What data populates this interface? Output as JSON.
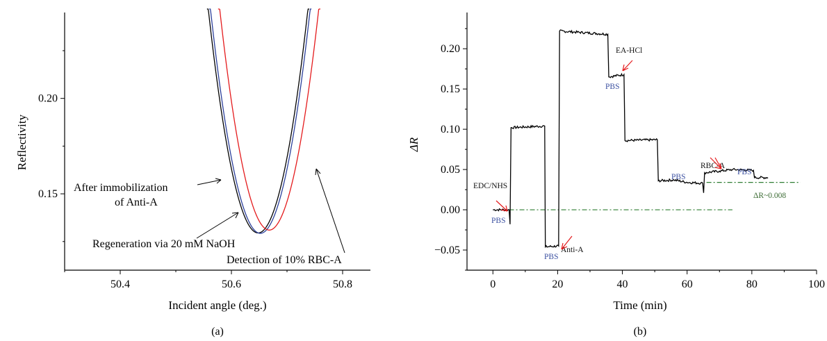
{
  "chart_data": [
    {
      "type": "line",
      "panel": "(a)",
      "xlabel": "Incident angle (deg.)",
      "ylabel": "Reflectivity",
      "xlim": [
        50.3,
        50.85
      ],
      "ylim": [
        0.11,
        0.245
      ],
      "xticks": [
        50.4,
        50.6,
        50.8
      ],
      "xtick_labels": [
        "50.4",
        "50.6",
        "50.8"
      ],
      "yticks": [
        0.15,
        0.2
      ],
      "ytick_labels": [
        "0.15",
        "0.20"
      ],
      "series": [
        {
          "name": "After immobilization of Anti-A",
          "color": "#000000",
          "center": 50.648,
          "min": 0.1295,
          "curvature": 14.6
        },
        {
          "name": "Regeneration via 20 mM NaOH",
          "color": "#2b3f9a",
          "center": 50.652,
          "min": 0.1293,
          "curvature": 14.6
        },
        {
          "name": "Detection of 10% RBC-A",
          "color": "#e41a1c",
          "center": 50.668,
          "min": 0.131,
          "curvature": 14.6
        }
      ],
      "annotations": [
        {
          "text_lines": [
            "After immobilization",
            "of Anti-A"
          ]
        },
        {
          "text_lines": [
            "Regeneration via 20 mM NaOH"
          ]
        },
        {
          "text_lines": [
            "Detection of 10% RBC-A"
          ]
        }
      ]
    },
    {
      "type": "line",
      "panel": "(b)",
      "xlabel": "Time (min)",
      "ylabel": "ΔR",
      "xlim": [
        -8,
        100
      ],
      "ylim": [
        -0.075,
        0.245
      ],
      "xticks": [
        0,
        20,
        40,
        60,
        80,
        100
      ],
      "xtick_labels": [
        "0",
        "20",
        "40",
        "60",
        "80",
        "100"
      ],
      "yticks": [
        -0.05,
        0.0,
        0.05,
        0.1,
        0.15,
        0.2
      ],
      "ytick_labels": [
        "−0.05",
        "0.00",
        "0.05",
        "0.10",
        "0.15",
        "0.20"
      ],
      "series": [
        {
          "color": "#000000",
          "points": [
            [
              0,
              0.0
            ],
            [
              5,
              0.0
            ],
            [
              5.3,
              -0.018
            ],
            [
              5.6,
              0.102
            ],
            [
              16,
              0.104
            ],
            [
              16.2,
              -0.046
            ],
            [
              20.3,
              -0.045
            ],
            [
              20.6,
              0.222
            ],
            [
              35.5,
              0.218
            ],
            [
              35.8,
              0.165
            ],
            [
              40.5,
              0.168
            ],
            [
              40.8,
              0.086
            ],
            [
              50.8,
              0.087
            ],
            [
              51.1,
              0.036
            ],
            [
              56,
              0.037
            ],
            [
              60,
              0.034
            ],
            [
              64.8,
              0.033
            ],
            [
              65.1,
              0.021
            ],
            [
              65.4,
              0.046
            ],
            [
              70,
              0.048
            ],
            [
              74,
              0.05
            ],
            [
              80.5,
              0.049
            ],
            [
              80.8,
              0.04
            ],
            [
              85,
              0.04
            ]
          ]
        }
      ],
      "baselines": [
        {
          "y": 0.0,
          "x_start": 5,
          "x_end": 74,
          "color": "#2e7d32",
          "style": "dash-dot"
        },
        {
          "y": 0.034,
          "x_start": 66,
          "x_end": 95,
          "color": "#2e7d32",
          "style": "dash-dot"
        }
      ],
      "annotations": [
        {
          "text": "EDC/NHS"
        },
        {
          "text": "Anti-A"
        },
        {
          "text": "EA-HCl"
        },
        {
          "text": "RBC-A"
        },
        {
          "text": "ΔR~0.008"
        }
      ],
      "pbs_labels": [
        "PBS",
        "PBS",
        "PBS",
        "PBS",
        "PBS"
      ]
    }
  ],
  "captions": {
    "a": "(a)",
    "b": "(b)"
  }
}
